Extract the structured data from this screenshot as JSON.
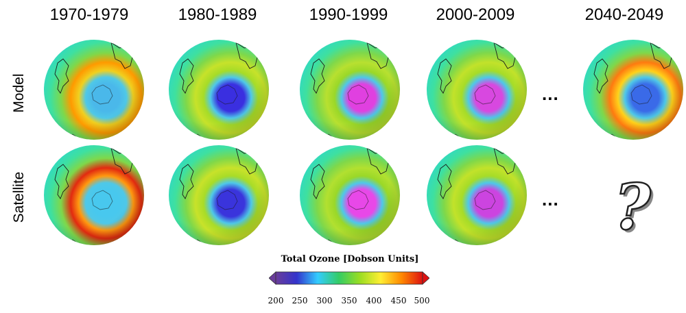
{
  "columns": [
    {
      "title": "1970-1979"
    },
    {
      "title": "1980-1989"
    },
    {
      "title": "1990-1999"
    },
    {
      "title": "2000-2009"
    },
    {
      "title": "2040-2049"
    }
  ],
  "rows": [
    {
      "label": "Model"
    },
    {
      "label": "Satellite"
    }
  ],
  "ellipsis": "...",
  "unknown_symbol": "?",
  "colorbar": {
    "title": "Total Ozone [Dobson Units]",
    "ticks": [
      "200",
      "250",
      "300",
      "350",
      "400",
      "450",
      "500"
    ],
    "range": [
      200,
      500
    ],
    "colors": [
      "#6a3d9a",
      "#3333cc",
      "#33ccff",
      "#33cc66",
      "#99dd22",
      "#ffee33",
      "#ff8800",
      "#dd1111"
    ]
  },
  "globes": {
    "model": [
      {
        "period": "1970-1979",
        "center_color": "#4ab8ea",
        "ring_color": "#f0d020",
        "hot_color": "#ff9a00"
      },
      {
        "period": "1980-1989",
        "center_color": "#3a2fe0",
        "ring_color": "#a6dc28",
        "hot_color": "#c7e22a"
      },
      {
        "period": "1990-1999",
        "center_color": "#e040e0",
        "ring_color": "#9ad828",
        "hot_color": "#b8e030"
      },
      {
        "period": "2000-2009",
        "center_color": "#d848e0",
        "ring_color": "#a6dc28",
        "hot_color": "#c2e22a"
      },
      {
        "period": "2040-2049",
        "center_color": "#3a6ae8",
        "ring_color": "#ffd21a",
        "hot_color": "#ff7a10"
      }
    ],
    "satellite": [
      {
        "period": "1970-1979",
        "center_color": "#48c8ee",
        "ring_color": "#ff9a10",
        "hot_color": "#e22a10"
      },
      {
        "period": "1980-1989",
        "center_color": "#3a34dc",
        "ring_color": "#a8dc28",
        "hot_color": "#c8e22a"
      },
      {
        "period": "1990-1999",
        "center_color": "#e848e8",
        "ring_color": "#9ad828",
        "hot_color": "#b2e030"
      },
      {
        "period": "2000-2009",
        "center_color": "#cc44e0",
        "ring_color": "#a6dc28",
        "hot_color": "#c2e22a"
      }
    ]
  }
}
